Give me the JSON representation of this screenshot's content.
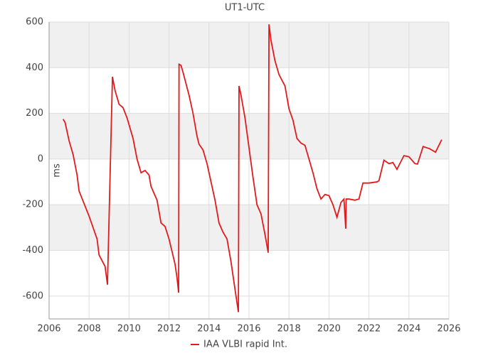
{
  "chart_data": {
    "type": "line",
    "title": "UT1-UTC",
    "y_label": "ms",
    "xlim": [
      2006,
      2026
    ],
    "xticks": [
      2006,
      2008,
      2010,
      2012,
      2014,
      2016,
      2018,
      2020,
      2022,
      2024,
      2026
    ],
    "ylim": [
      -700,
      600
    ],
    "yticks": [
      -600,
      -400,
      -200,
      0,
      200,
      400,
      600
    ],
    "grid": true,
    "legend": "bottom",
    "series": [
      {
        "name": "IAA VLBI rapid Int.",
        "color": "#e31a1c",
        "x": [
          2006.7,
          2006.8,
          2007.0,
          2007.2,
          2007.4,
          2007.5,
          2008.0,
          2008.4,
          2008.5,
          2008.8,
          2008.92,
          2009.17,
          2009.3,
          2009.5,
          2009.7,
          2009.9,
          2010.2,
          2010.4,
          2010.6,
          2010.8,
          2011.0,
          2011.1,
          2011.4,
          2011.6,
          2011.8,
          2012.0,
          2012.3,
          2012.4,
          2012.48,
          2012.5,
          2012.6,
          2012.7,
          2013.0,
          2013.2,
          2013.4,
          2013.5,
          2013.7,
          2013.9,
          2014.1,
          2014.3,
          2014.5,
          2014.7,
          2014.9,
          2015.1,
          2015.3,
          2015.47,
          2015.5,
          2015.6,
          2015.8,
          2016.0,
          2016.2,
          2016.4,
          2016.6,
          2016.8,
          2016.96,
          2017.0,
          2017.1,
          2017.3,
          2017.5,
          2017.8,
          2018.0,
          2018.2,
          2018.4,
          2018.6,
          2018.8,
          2019.0,
          2019.2,
          2019.4,
          2019.6,
          2019.8,
          2020.0,
          2020.2,
          2020.4,
          2020.6,
          2020.75,
          2020.84,
          2020.86,
          2021.0,
          2021.3,
          2021.5,
          2021.7,
          2022.0,
          2022.4,
          2022.5,
          2022.75,
          2023.0,
          2023.2,
          2023.4,
          2023.75,
          2024.0,
          2024.3,
          2024.43,
          2024.71,
          2025.04,
          2025.33,
          2025.64
        ],
        "values": [
          175,
          160,
          80,
          20,
          -70,
          -140,
          -250,
          -350,
          -420,
          -470,
          -550,
          360,
          300,
          240,
          225,
          180,
          90,
          0,
          -60,
          -50,
          -70,
          -120,
          -180,
          -280,
          -295,
          -350,
          -460,
          -520,
          -585,
          415,
          410,
          380,
          280,
          200,
          100,
          65,
          40,
          -20,
          -100,
          -180,
          -280,
          -320,
          -350,
          -450,
          -570,
          -670,
          320,
          280,
          180,
          50,
          -80,
          -200,
          -240,
          -330,
          -410,
          590,
          520,
          430,
          370,
          320,
          220,
          170,
          90,
          70,
          60,
          0,
          -60,
          -130,
          -175,
          -155,
          -160,
          -200,
          -255,
          -190,
          -175,
          -305,
          -175,
          -175,
          -180,
          -175,
          -105,
          -105,
          -100,
          -95,
          -5,
          -20,
          -15,
          -45,
          15,
          10,
          -20,
          -22,
          55,
          45,
          30,
          85
        ]
      }
    ]
  }
}
